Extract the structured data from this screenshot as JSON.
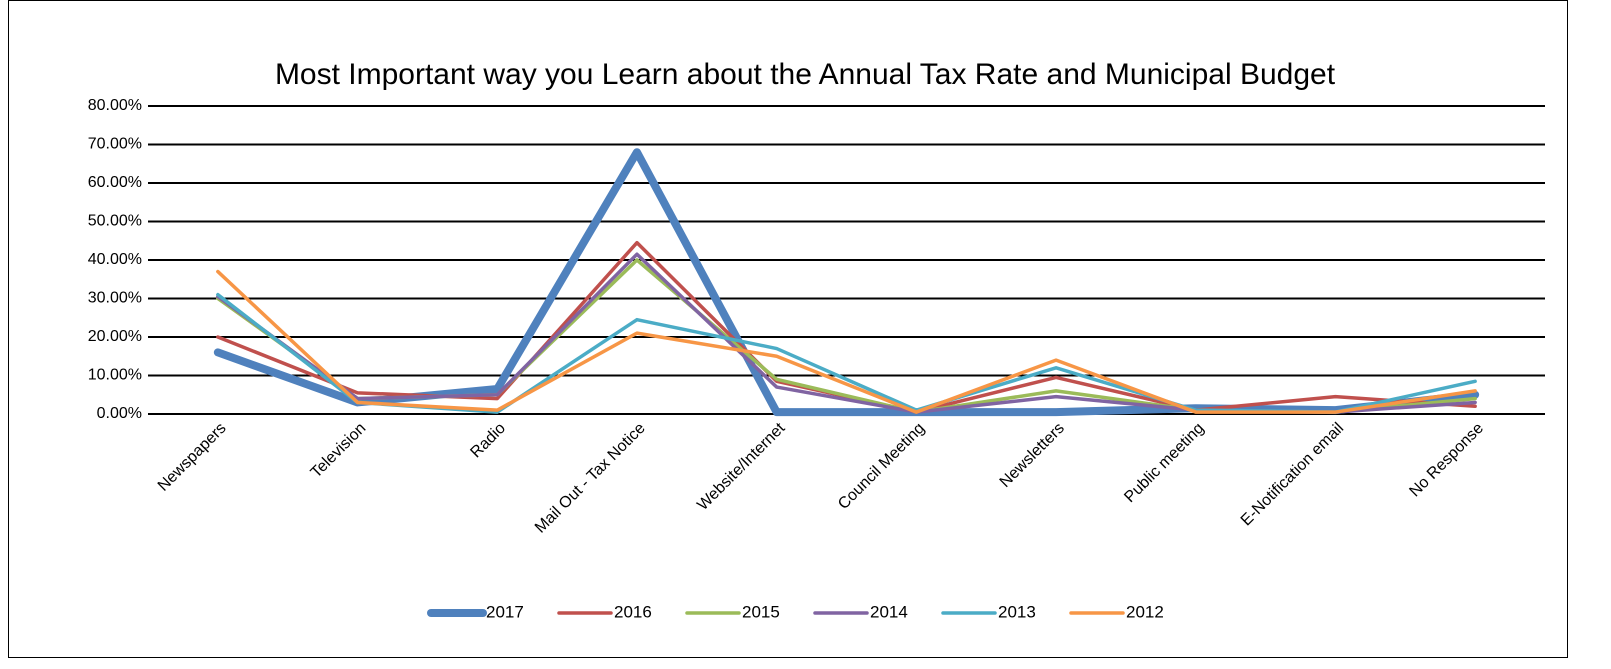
{
  "chart_data": {
    "type": "line",
    "title": "Most Important way you Learn about the Annual Tax Rate and Municipal Budget",
    "categories": [
      "Newspapers",
      "Television",
      "Radio",
      "Mail Out - Tax Notice",
      "Website/Internet",
      "Council Meeting",
      "Newsletters",
      "Public meeting",
      "E-Notification email",
      "No Response"
    ],
    "series": [
      {
        "name": "2017",
        "color": "#4f81bd",
        "values": [
          16,
          3,
          6.5,
          68,
          0.5,
          0.5,
          0.5,
          1.5,
          1,
          5
        ]
      },
      {
        "name": "2016",
        "color": "#c0504d",
        "values": [
          20,
          5.5,
          4,
          44.5,
          8.5,
          0.5,
          9.5,
          1,
          4.5,
          2
        ]
      },
      {
        "name": "2015",
        "color": "#9bbb59",
        "values": [
          30,
          4,
          5,
          40,
          9,
          0.5,
          6,
          1,
          0.5,
          4
        ]
      },
      {
        "name": "2014",
        "color": "#8064a2",
        "values": [
          30.5,
          4,
          5,
          41.5,
          7,
          0.5,
          4.5,
          1,
          0.5,
          3
        ]
      },
      {
        "name": "2013",
        "color": "#4bacc6",
        "values": [
          31,
          3,
          0.5,
          24.5,
          17,
          1,
          12,
          1,
          0.5,
          8.5
        ]
      },
      {
        "name": "2012",
        "color": "#f79646",
        "values": [
          37,
          3,
          1,
          21,
          15,
          0.5,
          14,
          0.5,
          0.5,
          6
        ]
      }
    ],
    "ylim": [
      0,
      80
    ],
    "yticks": [
      {
        "value": 0,
        "label": "0.00%"
      },
      {
        "value": 10,
        "label": "10.00%"
      },
      {
        "value": 20,
        "label": "20.00%"
      },
      {
        "value": 30,
        "label": "30.00%"
      },
      {
        "value": 40,
        "label": "40.00%"
      },
      {
        "value": 50,
        "label": "50.00%"
      },
      {
        "value": 60,
        "label": "60.00%"
      },
      {
        "value": 70,
        "label": "70.00%"
      },
      {
        "value": 80,
        "label": "80.00%"
      }
    ],
    "grid": true,
    "legend": "bottom"
  }
}
